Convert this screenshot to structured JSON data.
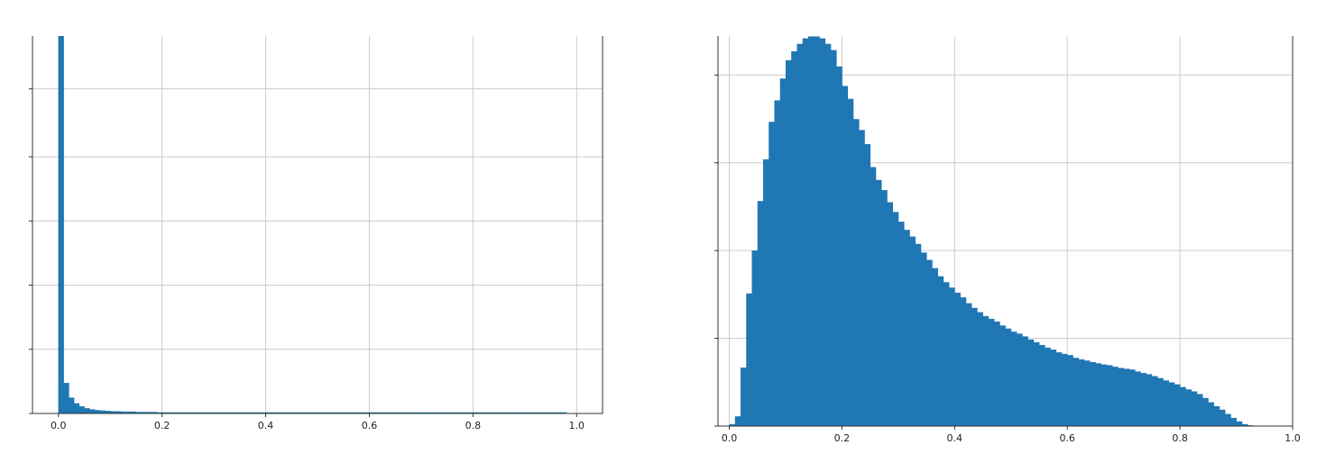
{
  "colors": {
    "bar": "#1f77b4",
    "grid": "#cccccc",
    "axis": "#333333",
    "background": "#ffffff"
  },
  "chart_data": [
    {
      "type": "bar",
      "title": "",
      "xlabel": "",
      "ylabel": "",
      "xlim": [
        -0.05,
        1.05
      ],
      "ylim": [
        0,
        1.0
      ],
      "grid": true,
      "bin_width": 0.01,
      "bin_start": 0.0,
      "x_ticks": [
        0.0,
        0.2,
        0.4,
        0.6,
        0.8,
        1.0
      ],
      "x_tick_labels": [
        "0.0",
        "0.2",
        "0.4",
        "0.6",
        "0.8",
        "1.0"
      ],
      "y_ticks": [
        0,
        0.17,
        0.34,
        0.51,
        0.68,
        0.86
      ],
      "y_tick_labels": [
        "",
        "",
        "",
        "",
        "",
        ""
      ],
      "values": [
        1.0,
        0.081,
        0.042,
        0.027,
        0.019,
        0.014,
        0.011,
        0.009,
        0.008,
        0.007,
        0.006,
        0.006,
        0.005,
        0.005,
        0.005,
        0.004,
        0.004,
        0.004,
        0.004,
        0.003,
        0.003,
        0.003,
        0.003,
        0.003,
        0.003,
        0.003,
        0.003,
        0.003,
        0.003,
        0.003,
        0.003,
        0.003,
        0.003,
        0.003,
        0.003,
        0.003,
        0.003,
        0.003,
        0.003,
        0.003,
        0.003,
        0.003,
        0.003,
        0.003,
        0.003,
        0.003,
        0.003,
        0.003,
        0.003,
        0.003,
        0.003,
        0.003,
        0.003,
        0.003,
        0.003,
        0.003,
        0.003,
        0.003,
        0.003,
        0.003,
        0.003,
        0.003,
        0.003,
        0.003,
        0.003,
        0.003,
        0.003,
        0.003,
        0.003,
        0.003,
        0.003,
        0.003,
        0.003,
        0.003,
        0.003,
        0.003,
        0.003,
        0.003,
        0.003,
        0.003,
        0.003,
        0.003,
        0.003,
        0.003,
        0.003,
        0.003,
        0.003,
        0.003,
        0.003,
        0.003,
        0.003,
        0.003,
        0.003,
        0.003,
        0.003,
        0.003,
        0.003,
        0.003
      ]
    },
    {
      "type": "bar",
      "title": "",
      "xlabel": "",
      "ylabel": "",
      "xlim": [
        -0.02,
        1.0
      ],
      "ylim": [
        0,
        1.0
      ],
      "grid": true,
      "bin_width": 0.01,
      "bin_start": 0.0,
      "x_ticks": [
        0.0,
        0.2,
        0.4,
        0.6,
        0.8,
        1.0
      ],
      "x_tick_labels": [
        "0.0",
        "0.2",
        "0.4",
        "0.6",
        "0.8",
        "1.0"
      ],
      "y_ticks": [
        0,
        0.225,
        0.45,
        0.675,
        0.9
      ],
      "y_tick_labels": [
        "",
        "",
        "",
        "",
        ""
      ],
      "values": [
        0.005,
        0.025,
        0.15,
        0.34,
        0.45,
        0.577,
        0.684,
        0.78,
        0.835,
        0.891,
        0.938,
        0.961,
        0.98,
        0.994,
        0.999,
        0.999,
        0.994,
        0.98,
        0.964,
        0.922,
        0.872,
        0.839,
        0.787,
        0.759,
        0.723,
        0.664,
        0.631,
        0.605,
        0.574,
        0.549,
        0.524,
        0.503,
        0.486,
        0.467,
        0.445,
        0.426,
        0.405,
        0.384,
        0.369,
        0.355,
        0.342,
        0.33,
        0.315,
        0.303,
        0.292,
        0.282,
        0.275,
        0.268,
        0.258,
        0.25,
        0.242,
        0.237,
        0.23,
        0.222,
        0.215,
        0.208,
        0.201,
        0.196,
        0.189,
        0.185,
        0.182,
        0.175,
        0.171,
        0.168,
        0.164,
        0.161,
        0.158,
        0.156,
        0.152,
        0.149,
        0.147,
        0.145,
        0.14,
        0.136,
        0.133,
        0.128,
        0.123,
        0.117,
        0.112,
        0.107,
        0.1,
        0.094,
        0.089,
        0.082,
        0.072,
        0.061,
        0.051,
        0.042,
        0.031,
        0.021,
        0.012,
        0.005,
        0.002
      ]
    }
  ]
}
